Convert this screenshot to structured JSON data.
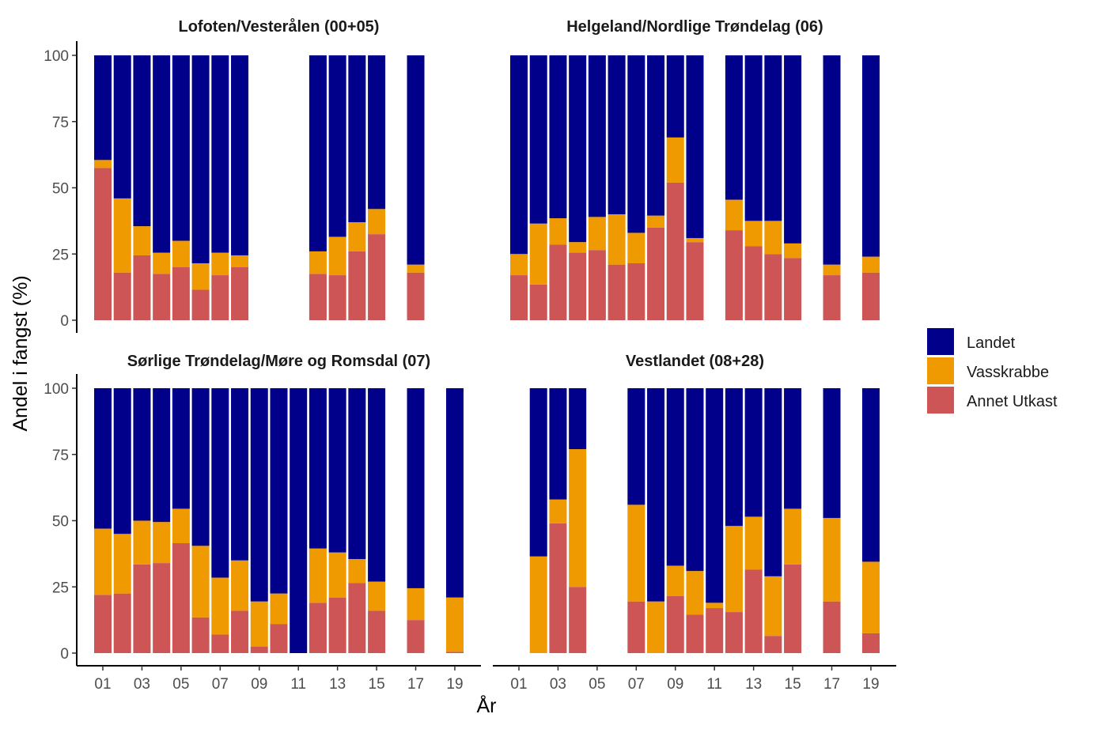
{
  "chart_data": {
    "type": "bar",
    "stacked": true,
    "xlabel": "År",
    "ylabel": "Andel i fangst (%)",
    "ylim": [
      0,
      100
    ],
    "y_ticks": [
      0,
      25,
      50,
      75,
      100
    ],
    "x_range": [
      1,
      19
    ],
    "x_ticks": [
      "01",
      "03",
      "05",
      "07",
      "09",
      "11",
      "13",
      "15",
      "17",
      "19"
    ],
    "grid": false,
    "legend_position": "right",
    "series": [
      {
        "name": "Landet",
        "color": "#00008B"
      },
      {
        "name": "Vasskrabbe",
        "color": "#EE9A00"
      },
      {
        "name": "Annet Utkast",
        "color": "#CD5555"
      }
    ],
    "panels": [
      {
        "title": "Lofoten/Vesterålen (00+05)",
        "years": [
          1,
          2,
          3,
          4,
          5,
          6,
          7,
          8,
          12,
          13,
          14,
          15,
          17
        ],
        "annet": [
          57.5,
          18,
          24.5,
          17.5,
          20,
          11.5,
          17,
          20,
          17.5,
          17,
          26,
          32.5,
          18
        ],
        "vasskrabbe": [
          3,
          28,
          11,
          8,
          10,
          10,
          8.5,
          4.5,
          8.5,
          14.5,
          11,
          9.5,
          3
        ]
      },
      {
        "title": "Helgeland/Nordlige Trøndelag (06)",
        "years": [
          1,
          2,
          3,
          4,
          5,
          6,
          7,
          8,
          9,
          10,
          12,
          13,
          14,
          15,
          17,
          19
        ],
        "annet": [
          17,
          13.5,
          28.5,
          25.5,
          26.5,
          21,
          21.5,
          35,
          52,
          29.5,
          34,
          28,
          25,
          23.5,
          17,
          18
        ],
        "vasskrabbe": [
          8,
          23,
          10,
          4,
          12.5,
          19,
          11.5,
          4.5,
          17,
          1.5,
          11.5,
          9.5,
          12.5,
          5.5,
          4,
          6
        ]
      },
      {
        "title": "Sørlige Trøndelag/Møre og Romsdal (07)",
        "years": [
          1,
          2,
          3,
          4,
          5,
          6,
          7,
          8,
          9,
          10,
          11,
          12,
          13,
          14,
          15,
          17,
          19
        ],
        "annet": [
          22,
          22.5,
          33.5,
          34,
          41.5,
          13.5,
          7,
          16,
          2.5,
          11,
          0,
          19,
          21,
          26.5,
          16,
          12.5,
          0.5
        ],
        "vasskrabbe": [
          25,
          22.5,
          16.5,
          15.5,
          13,
          27,
          21.5,
          19,
          17,
          11.5,
          0,
          20.5,
          17,
          9,
          11,
          12,
          20.5
        ]
      },
      {
        "title": "Vestlandet (08+28)",
        "years": [
          2,
          3,
          4,
          7,
          8,
          9,
          10,
          11,
          12,
          13,
          14,
          15,
          17,
          19
        ],
        "annet": [
          0,
          49,
          25,
          19.5,
          0,
          21.5,
          14.5,
          17,
          15.5,
          31.5,
          6.5,
          33.5,
          19.5,
          7.5
        ],
        "vasskrabbe": [
          36.5,
          9,
          52,
          36.5,
          19.5,
          11.5,
          16.5,
          2,
          32.5,
          20,
          22.5,
          21,
          31.5,
          27
        ]
      }
    ]
  }
}
